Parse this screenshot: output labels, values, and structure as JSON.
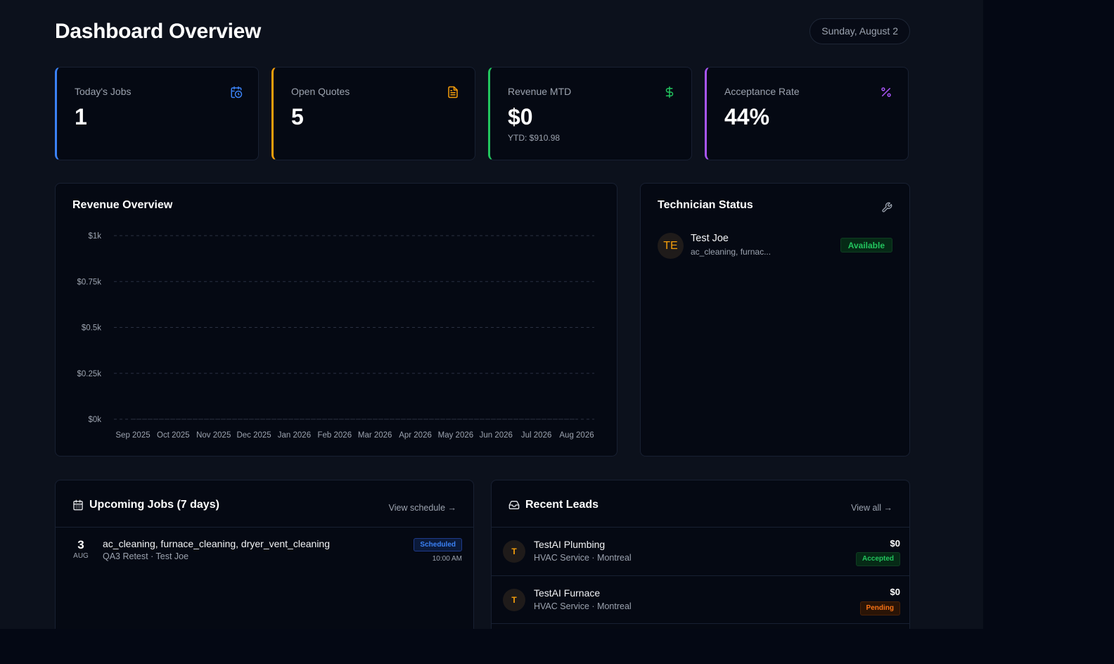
{
  "header": {
    "title": "Dashboard Overview",
    "date": "Sunday, August 2"
  },
  "stats": [
    {
      "label": "Today's Jobs",
      "value": "1",
      "icon": "calendar-clock-icon",
      "accent": "#3b82f6"
    },
    {
      "label": "Open Quotes",
      "value": "5",
      "icon": "document-icon",
      "accent": "#f59e0b"
    },
    {
      "label": "Revenue MTD",
      "value": "$0",
      "sub": "YTD: $910.98",
      "icon": "dollar-icon",
      "accent": "#22c55e"
    },
    {
      "label": "Acceptance Rate",
      "value": "44%",
      "icon": "percent-icon",
      "accent": "#a855f7"
    }
  ],
  "revenue": {
    "title": "Revenue Overview"
  },
  "chart_data": {
    "type": "line",
    "title": "Revenue Overview",
    "xlabel": "",
    "ylabel": "",
    "categories": [
      "Sep 2025",
      "Oct 2025",
      "Nov 2025",
      "Dec 2025",
      "Jan 2026",
      "Feb 2026",
      "Mar 2026",
      "Apr 2026",
      "May 2026",
      "Jun 2026",
      "Jul 2026",
      "Aug 2026"
    ],
    "values": [
      0,
      0,
      0,
      0,
      0,
      0,
      0,
      0,
      0,
      0,
      0,
      0
    ],
    "ylim": [
      0,
      1000
    ],
    "yticks": [
      0,
      250,
      500,
      750,
      1000
    ],
    "ytick_labels": [
      "$0k",
      "$0.25k",
      "$0.5k",
      "$0.75k",
      "$1k"
    ],
    "grid": true
  },
  "technicians": {
    "title": "Technician Status",
    "icon": "wrench-icon",
    "items": [
      {
        "initials": "TE",
        "name": "Test Joe",
        "skills": "ac_cleaning, furnac...",
        "status": "Available"
      }
    ]
  },
  "upcoming": {
    "title": "Upcoming Jobs (7 days)",
    "icon": "calendar-icon",
    "link": "View schedule →",
    "jobs": [
      {
        "day": "3",
        "month": "AUG",
        "title": "ac_cleaning, furnace_cleaning, dryer_vent_cleaning",
        "sub": "QA3 Retest · Test Joe",
        "status": "Scheduled",
        "time": "10:00 AM"
      }
    ]
  },
  "leads": {
    "title": "Recent Leads",
    "icon": "inbox-icon",
    "link": "View all →",
    "items": [
      {
        "initial": "T",
        "name": "TestAI Plumbing",
        "sub": "HVAC Service · Montreal",
        "amount": "$0",
        "status": "Accepted"
      },
      {
        "initial": "T",
        "name": "TestAI Furnace",
        "sub": "HVAC Service · Montreal",
        "amount": "$0",
        "status": "Pending"
      }
    ]
  }
}
